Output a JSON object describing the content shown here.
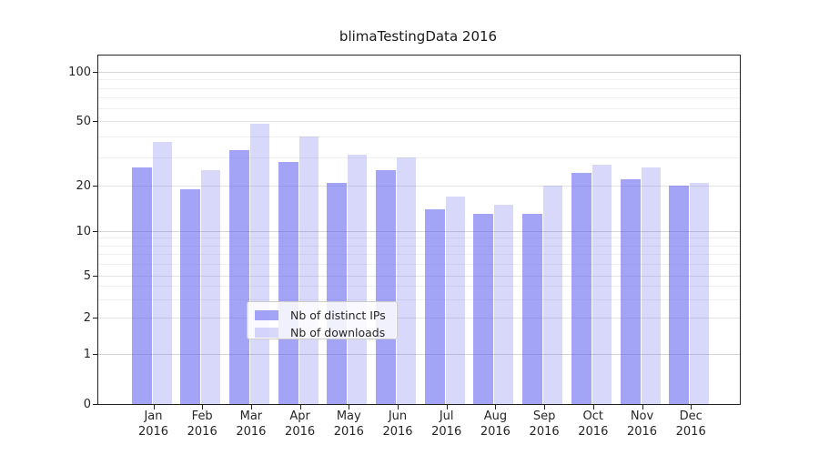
{
  "title": "blimaTestingData 2016",
  "chart_data": {
    "type": "bar",
    "title": "blimaTestingData 2016",
    "categories": [
      "Jan 2016",
      "Feb 2016",
      "Mar 2016",
      "Apr 2016",
      "May 2016",
      "Jun 2016",
      "Jul 2016",
      "Aug 2016",
      "Sep 2016",
      "Oct 2016",
      "Nov 2016",
      "Dec 2016"
    ],
    "series": [
      {
        "name": "Nb of distinct IPs",
        "color_rgba": "rgba(90,90,240,0.55)",
        "color_hex_on_white": "#a6a6f5",
        "values": [
          26,
          19,
          33,
          28,
          21,
          25,
          14,
          13,
          13,
          24,
          22,
          20
        ]
      },
      {
        "name": "Nb of downloads",
        "color_rgba": "rgba(90,90,240,0.24)",
        "color_hex_on_white": "#d9d9fa",
        "values": [
          37,
          25,
          48,
          40,
          31,
          30,
          17,
          15,
          20,
          27,
          26,
          21
        ]
      }
    ],
    "xlabel": "",
    "ylabel": "",
    "yscale": "log-like (symlog with 0 baseline)",
    "ylim": [
      0,
      127
    ],
    "y_tick_values": [
      0,
      1,
      2,
      5,
      10,
      20,
      50,
      100
    ],
    "grid": true,
    "legend_position": "inside lower center"
  },
  "y_axis": {
    "tick_labels": [
      "0",
      "1",
      "2",
      "5",
      "10",
      "20",
      "50",
      "100"
    ]
  },
  "legend": {
    "items": [
      {
        "label": "Nb of distinct IPs"
      },
      {
        "label": "Nb of downloads"
      }
    ]
  }
}
